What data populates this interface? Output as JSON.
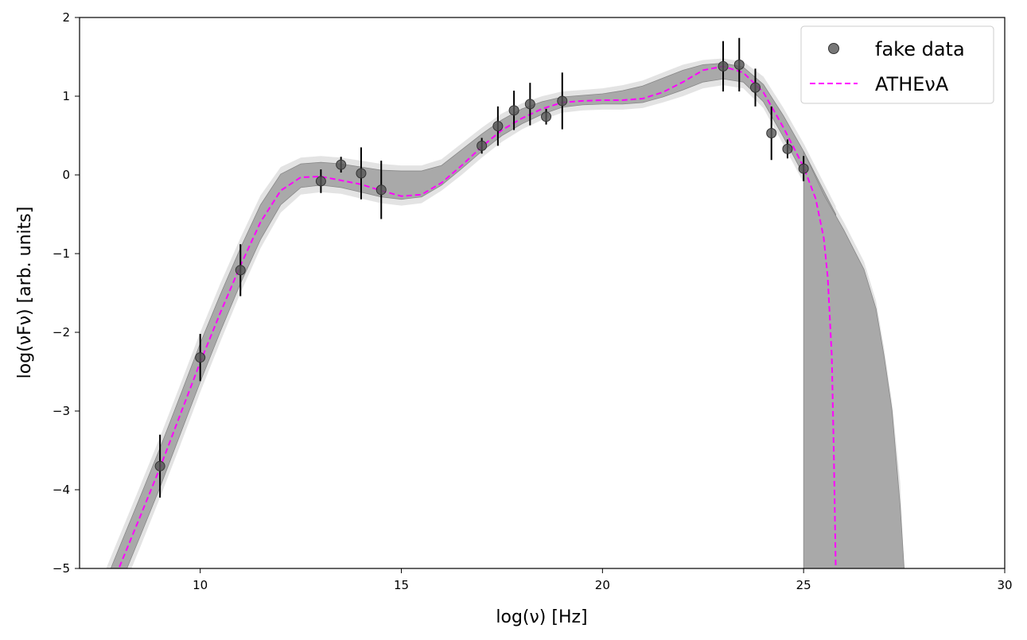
{
  "chart_data": {
    "type": "scatter",
    "xlabel": "log(ν) [Hz]",
    "ylabel": "log(νFν) [arb. units]",
    "xlim": [
      7,
      30
    ],
    "ylim": [
      -5,
      2
    ],
    "xticks": [
      10,
      15,
      20,
      25,
      30
    ],
    "yticks": [
      -5,
      -4,
      -3,
      -2,
      -1,
      0,
      1,
      2
    ],
    "xtick_labels": [
      "10",
      "15",
      "20",
      "25",
      "30"
    ],
    "ytick_labels": [
      "−5",
      "−4",
      "−3",
      "−2",
      "−1",
      "0",
      "1",
      "2"
    ],
    "grid": false,
    "legend_position": "top-right",
    "colors": {
      "points": "#555555",
      "errorbar": "#000000",
      "band_inner": "#a9a9a9",
      "band_outer": "#e3e3e3",
      "model_line": "#ff00ff",
      "model_line_dark": "#a020a0"
    },
    "series": [
      {
        "name": "fake data",
        "kind": "points",
        "x": [
          9.0,
          10.0,
          11.0,
          13.0,
          13.5,
          14.0,
          14.5,
          17.0,
          17.4,
          17.8,
          18.2,
          18.6,
          19.0,
          23.0,
          23.4,
          23.8,
          24.2,
          24.6,
          25.0
        ],
        "y": [
          -3.7,
          -2.32,
          -1.21,
          -0.08,
          0.13,
          0.02,
          -0.19,
          0.37,
          0.62,
          0.82,
          0.9,
          0.74,
          0.94,
          1.38,
          1.4,
          1.11,
          0.53,
          0.33,
          0.08
        ],
        "yerr": [
          0.4,
          0.3,
          0.33,
          0.15,
          0.1,
          0.33,
          0.37,
          0.1,
          0.25,
          0.25,
          0.27,
          0.1,
          0.36,
          0.32,
          0.34,
          0.24,
          0.34,
          0.12,
          0.16
        ]
      },
      {
        "name": "ATHEνA",
        "kind": "dashed-line",
        "x": [
          7.5,
          8.0,
          8.5,
          9.0,
          9.5,
          10.0,
          10.5,
          11.0,
          11.5,
          12.0,
          12.5,
          13.0,
          13.5,
          14.0,
          14.5,
          15.0,
          15.5,
          16.0,
          16.5,
          17.0,
          17.5,
          18.0,
          18.5,
          19.0,
          19.5,
          20.0,
          20.5,
          21.0,
          21.5,
          22.0,
          22.5,
          23.0,
          23.5,
          24.0,
          24.5,
          25.0,
          25.3,
          25.5,
          25.6,
          25.7,
          25.75,
          25.8
        ],
        "y": [
          -5.6,
          -4.97,
          -4.35,
          -3.72,
          -3.05,
          -2.38,
          -1.75,
          -1.15,
          -0.6,
          -0.2,
          -0.03,
          -0.02,
          -0.07,
          -0.12,
          -0.2,
          -0.27,
          -0.25,
          -0.1,
          0.12,
          0.36,
          0.57,
          0.72,
          0.84,
          0.92,
          0.94,
          0.95,
          0.95,
          0.97,
          1.05,
          1.18,
          1.33,
          1.38,
          1.3,
          1.05,
          0.6,
          0.1,
          -0.3,
          -0.8,
          -1.3,
          -2.3,
          -3.5,
          -5.0
        ]
      }
    ],
    "model_band": {
      "x": [
        7.5,
        8.0,
        8.5,
        9.0,
        9.5,
        10.0,
        10.5,
        11.0,
        11.5,
        12.0,
        12.5,
        13.0,
        13.5,
        14.0,
        14.5,
        15.0,
        15.5,
        16.0,
        16.5,
        17.0,
        17.5,
        18.0,
        18.5,
        19.0,
        19.5,
        20.0,
        20.5,
        21.0,
        21.5,
        22.0,
        22.5,
        23.0,
        23.5,
        24.0,
        24.5,
        25.0,
        25.3,
        25.5,
        25.6,
        25.7,
        25.8
      ],
      "inner_upper": [
        -5.35,
        -4.72,
        -4.1,
        -3.47,
        -2.81,
        -2.14,
        -1.52,
        -0.93,
        -0.38,
        0.01,
        0.14,
        0.16,
        0.14,
        0.1,
        0.06,
        0.05,
        0.05,
        0.12,
        0.32,
        0.52,
        0.7,
        0.84,
        0.93,
        0.99,
        1.01,
        1.03,
        1.07,
        1.13,
        1.23,
        1.33,
        1.4,
        1.42,
        1.37,
        1.15,
        0.75,
        0.3,
        0.0,
        -0.2,
        -0.3,
        -0.4,
        -0.5
      ],
      "inner_lower": [
        -5.85,
        -5.22,
        -4.6,
        -3.97,
        -3.3,
        -2.63,
        -1.99,
        -1.38,
        -0.82,
        -0.38,
        -0.16,
        -0.13,
        -0.16,
        -0.22,
        -0.28,
        -0.31,
        -0.28,
        -0.13,
        0.08,
        0.3,
        0.5,
        0.65,
        0.77,
        0.86,
        0.89,
        0.9,
        0.9,
        0.92,
        0.99,
        1.08,
        1.18,
        1.22,
        1.18,
        0.93,
        0.48,
        0.0,
        -0.4,
        -0.9,
        -1.5,
        -3.0,
        -5.0
      ],
      "outer_upper": [
        -5.2,
        -4.58,
        -3.96,
        -3.33,
        -2.67,
        -2.0,
        -1.38,
        -0.8,
        -0.26,
        0.1,
        0.22,
        0.24,
        0.22,
        0.18,
        0.14,
        0.12,
        0.12,
        0.2,
        0.4,
        0.6,
        0.78,
        0.91,
        1.0,
        1.06,
        1.08,
        1.1,
        1.14,
        1.2,
        1.3,
        1.4,
        1.46,
        1.48,
        1.44,
        1.25,
        0.85,
        0.4,
        0.1,
        -0.1,
        -0.2,
        -0.3,
        -0.4
      ],
      "outer_lower": [
        -6.0,
        -5.36,
        -4.74,
        -4.1,
        -3.44,
        -2.76,
        -2.12,
        -1.5,
        -0.93,
        -0.48,
        -0.25,
        -0.22,
        -0.24,
        -0.3,
        -0.36,
        -0.39,
        -0.36,
        -0.2,
        0.0,
        0.22,
        0.42,
        0.58,
        0.7,
        0.79,
        0.82,
        0.83,
        0.83,
        0.85,
        0.92,
        1.0,
        1.1,
        1.14,
        1.1,
        0.85,
        0.38,
        -0.1,
        -0.55,
        -1.2,
        -2.5,
        -5.0,
        -5.0
      ],
      "extended_x": [
        25.0,
        25.5,
        26.0,
        26.5,
        26.8,
        27.0,
        27.2,
        27.4,
        27.5
      ],
      "extended_upper": [
        0.3,
        -0.25,
        -0.7,
        -1.2,
        -1.7,
        -2.3,
        -3.0,
        -4.2,
        -5.0
      ],
      "extended_outer": [
        0.4,
        -0.15,
        -0.6,
        -1.1,
        -1.6,
        -2.2,
        -2.9,
        -3.9,
        -5.0
      ]
    }
  }
}
